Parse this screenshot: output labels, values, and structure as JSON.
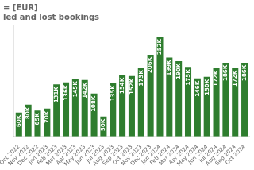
{
  "chart_data": {
    "type": "bar",
    "title": "= [EUR]",
    "subtitle": "led and lost bookings",
    "categories": [
      "Oct 2022",
      "Nov 2022",
      "Dec 2022",
      "Jan 2023",
      "Feb 2023",
      "Mar 2023",
      "Apr 2023",
      "May 2023",
      "Jun 2023",
      "Jul 2023",
      "Aug 2023",
      "Sep 2023",
      "Oct 2023",
      "Nov 2023",
      "Dec 2023",
      "Jan 2024",
      "Feb 2024",
      "Mar 2024",
      "Apr 2024",
      "May 2024",
      "Jun 2024",
      "Jul 2024",
      "Aug 2024",
      "Sep 2024",
      "Oct 2024"
    ],
    "values": [
      60000,
      80000,
      65000,
      70000,
      131000,
      136000,
      145000,
      142000,
      108000,
      50000,
      135000,
      154000,
      152000,
      173000,
      206000,
      252000,
      199000,
      190000,
      175000,
      146000,
      150000,
      172000,
      186000,
      172000,
      186000
    ],
    "value_labels": [
      "60K",
      "80K",
      "65K",
      "70K",
      "131K",
      "136K",
      "145K",
      "142K",
      "108K",
      "50K",
      "135K",
      "154K",
      "152K",
      "173K",
      "206K",
      "252K",
      "199K",
      "190K",
      "175K",
      "146K",
      "150K",
      "172K",
      "186K",
      "172K",
      "186K"
    ],
    "color": "#2e7d2e",
    "ylim": [
      0,
      280000
    ],
    "grid": false,
    "data_labels": true,
    "tick_labels": "x"
  }
}
